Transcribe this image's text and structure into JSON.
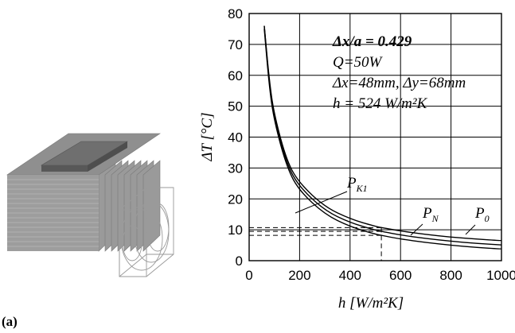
{
  "panel_label": "(a)",
  "illustration": {
    "name": "heat-sink with fan outline"
  },
  "chart_data": {
    "type": "line",
    "xlabel": "h [W/m²K]",
    "ylabel": "ΔT [°C]",
    "xlim": [
      0,
      1000
    ],
    "ylim": [
      0,
      80
    ],
    "xticks": [
      0,
      200,
      400,
      600,
      800,
      1000
    ],
    "yticks": [
      0,
      10,
      20,
      30,
      40,
      50,
      60,
      70,
      80
    ],
    "grid": true,
    "annotations": [
      "Δx/a = 0.429",
      "Q=50W",
      "Δx=48mm, Δy=68mm",
      "h = 524 W/m²K"
    ],
    "series": [
      {
        "name": "P_K1",
        "x": [
          60,
          80,
          100,
          150,
          200,
          300,
          400,
          500,
          524,
          600,
          700,
          800,
          900,
          1000
        ],
        "y": [
          76,
          58,
          47,
          32,
          25,
          17.4,
          13.5,
          11.1,
          10.7,
          9.6,
          8.5,
          7.6,
          7.0,
          6.5
        ]
      },
      {
        "name": "P_N",
        "x": [
          60,
          80,
          100,
          150,
          200,
          300,
          400,
          500,
          524,
          600,
          700,
          800,
          900,
          1000
        ],
        "y": [
          76,
          57,
          46,
          31,
          23.8,
          16.2,
          12.3,
          9.9,
          9.5,
          8.3,
          7.2,
          6.3,
          5.6,
          5.1
        ]
      },
      {
        "name": "P_0",
        "x": [
          60,
          80,
          100,
          150,
          200,
          300,
          400,
          500,
          524,
          600,
          700,
          800,
          900,
          1000
        ],
        "y": [
          75,
          56,
          45,
          30,
          22.5,
          15.0,
          11.0,
          8.6,
          8.2,
          7.0,
          5.9,
          5.0,
          4.3,
          3.8
        ]
      }
    ],
    "reference": {
      "x": 524,
      "y_levels": [
        10.7,
        9.5,
        8.2
      ]
    },
    "curve_labels": [
      {
        "main": "P",
        "sub": "K1"
      },
      {
        "main": "P",
        "sub": "N"
      },
      {
        "main": "P",
        "sub": "0"
      }
    ]
  }
}
